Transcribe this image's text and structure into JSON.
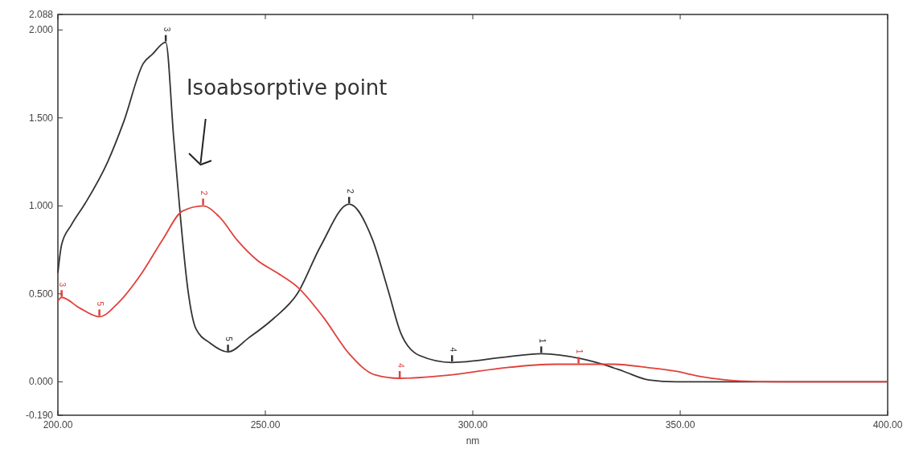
{
  "chart_data": {
    "type": "line",
    "xlabel": "nm",
    "xlim": [
      200,
      400
    ],
    "ylim": [
      -0.19,
      2.088
    ],
    "xticks": [
      {
        "value": 200,
        "label": "200.00"
      },
      {
        "value": 250,
        "label": "250.00"
      },
      {
        "value": 300,
        "label": "300.00"
      },
      {
        "value": 350,
        "label": "350.00"
      },
      {
        "value": 400,
        "label": "400.00"
      }
    ],
    "yticks": [
      {
        "value": -0.19,
        "label": "-0.190"
      },
      {
        "value": 0,
        "label": "0.000"
      },
      {
        "value": 0.5,
        "label": "0.500"
      },
      {
        "value": 1,
        "label": "1.000"
      },
      {
        "value": 1.5,
        "label": "1.500"
      },
      {
        "value": 2,
        "label": "2.000"
      },
      {
        "value": 2.088,
        "label": "2.088"
      }
    ],
    "grid": false,
    "line_style": "solid",
    "marker": "none",
    "series": [
      {
        "color": "#333333",
        "x": [
          200,
          200.9,
          203.2,
          206.6,
          212,
          215.9,
          220.6,
          222.7,
          226,
          227.9,
          229.6,
          231.3,
          233.3,
          236.7,
          241,
          246,
          252,
          257.7,
          263.3,
          270.2,
          275.8,
          279.6,
          282.6,
          287.1,
          295,
          307.7,
          316.5,
          326.4,
          332.6,
          336.3,
          342.5,
          349,
          360,
          380,
          400
        ],
        "values": [
          0.62,
          0.78,
          0.89,
          1.015,
          1.25,
          1.48,
          1.81,
          1.86,
          1.93,
          1.39,
          0.92,
          0.53,
          0.3,
          0.22,
          0.17,
          0.25,
          0.36,
          0.5,
          0.77,
          1.01,
          0.81,
          0.52,
          0.28,
          0.15,
          0.11,
          0.14,
          0.16,
          0.13,
          0.09,
          0.06,
          0.01,
          0,
          0,
          0,
          0
        ]
      },
      {
        "color": "#e0413c",
        "x": [
          200,
          200.9,
          205.2,
          210,
          214.6,
          220,
          225.3,
          230,
          235,
          238.8,
          243.4,
          248.1,
          252.8,
          257.7,
          263.9,
          270.2,
          276.4,
          282.4,
          295.1,
          307.7,
          320,
          325.5,
          334,
          342.5,
          348.9,
          355,
          364.4,
          373.8,
          400
        ],
        "values": [
          0.46,
          0.48,
          0.42,
          0.37,
          0.45,
          0.61,
          0.81,
          0.97,
          1.0,
          0.94,
          0.8,
          0.69,
          0.62,
          0.54,
          0.37,
          0.16,
          0.04,
          0.02,
          0.04,
          0.08,
          0.1,
          0.1,
          0.1,
          0.08,
          0.06,
          0.03,
          0.005,
          0,
          0
        ]
      }
    ],
    "annotations": [
      "Isoabsorptive point",
      {
        "text": "3",
        "x": 226,
        "y": 1.93
      },
      {
        "text": "2",
        "x": 270.2,
        "y": 1.01
      },
      {
        "text": "5",
        "x": 241,
        "y": 0.17
      },
      {
        "text": "4",
        "x": 295,
        "y": 0.11
      },
      {
        "text": "1",
        "x": 316.5,
        "y": 0.16
      },
      {
        "text": "3",
        "x": 200.9,
        "y": 0.48
      },
      {
        "text": "2",
        "x": 235,
        "y": 1.0
      },
      {
        "text": "5",
        "x": 210,
        "y": 0.37
      },
      {
        "text": "4",
        "x": 282.4,
        "y": 0.02
      },
      {
        "text": "1",
        "x": 325.5,
        "y": 0.1
      }
    ]
  }
}
